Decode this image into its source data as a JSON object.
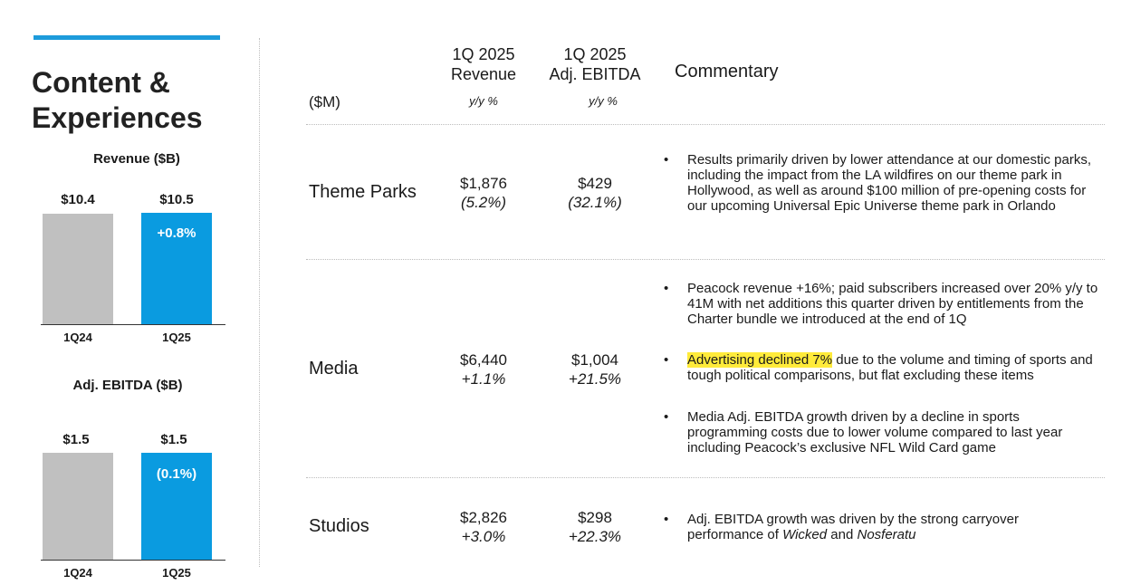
{
  "section": {
    "title_line1": "Content &",
    "title_line2": "Experiences"
  },
  "charts": {
    "revenue": {
      "title": "Revenue ($B)",
      "chart_data": {
        "type": "bar",
        "title": "Revenue ($B)",
        "categories": [
          "1Q24",
          "1Q25"
        ],
        "values": [
          10.4,
          10.5
        ],
        "value_labels": [
          "$10.4",
          "$10.5"
        ],
        "change_label": "+0.8%",
        "colors": [
          "#c0c0c0",
          "#0a9be0"
        ]
      }
    },
    "ebitda": {
      "title": "Adj. EBITDA ($B)",
      "chart_data": {
        "type": "bar",
        "title": "Adj. EBITDA ($B)",
        "categories": [
          "1Q24",
          "1Q25"
        ],
        "values": [
          1.5,
          1.5
        ],
        "value_labels": [
          "$1.5",
          "$1.5"
        ],
        "change_label": "(0.1%)",
        "colors": [
          "#c0c0c0",
          "#0a9be0"
        ]
      }
    }
  },
  "table": {
    "units": "($M)",
    "revenue_header": [
      "1Q 2025",
      "Revenue"
    ],
    "ebitda_header": [
      "1Q 2025",
      "Adj. EBITDA"
    ],
    "yy_label": "y/y %",
    "commentary_header": "Commentary",
    "rows": [
      {
        "name": "Theme Parks",
        "revenue": "$1,876",
        "revenue_change": "(5.2%)",
        "ebitda": "$429",
        "ebitda_change": "(32.1%)",
        "bullets": [
          "Results primarily driven by lower attendance at our domestic parks, including the impact from the LA wildfires on our theme park in Hollywood, as well as around $100 million of pre-opening costs for our upcoming Universal Epic Universe theme park in Orlando"
        ]
      },
      {
        "name": "Media",
        "revenue": "$6,440",
        "revenue_change": "+1.1%",
        "ebitda": "$1,004",
        "ebitda_change": "+21.5%",
        "bullets": [
          "Peacock revenue +16%; paid subscribers increased over 20% y/y to 41M with net additions this quarter driven by entitlements from the Charter bundle we introduced at the end of 1Q",
          {
            "highlight": "Advertising declined 7%",
            "rest": " due to the volume and timing of sports and tough political comparisons, but flat excluding these items"
          },
          "Media Adj. EBITDA growth driven by a decline in sports programming costs due to lower volume compared to last year including Peacock’s exclusive NFL Wild Card game"
        ]
      },
      {
        "name": "Studios",
        "revenue": "$2,826",
        "revenue_change": "+3.0%",
        "ebitda": "$298",
        "ebitda_change": "+22.3%",
        "bullets": [
          {
            "pre": "Adj. EBITDA growth was driven by the strong carryover performance of ",
            "em1": "Wicked",
            "mid": " and ",
            "em2": "Nosferatu"
          }
        ]
      }
    ]
  },
  "bullet_glyph": "•"
}
